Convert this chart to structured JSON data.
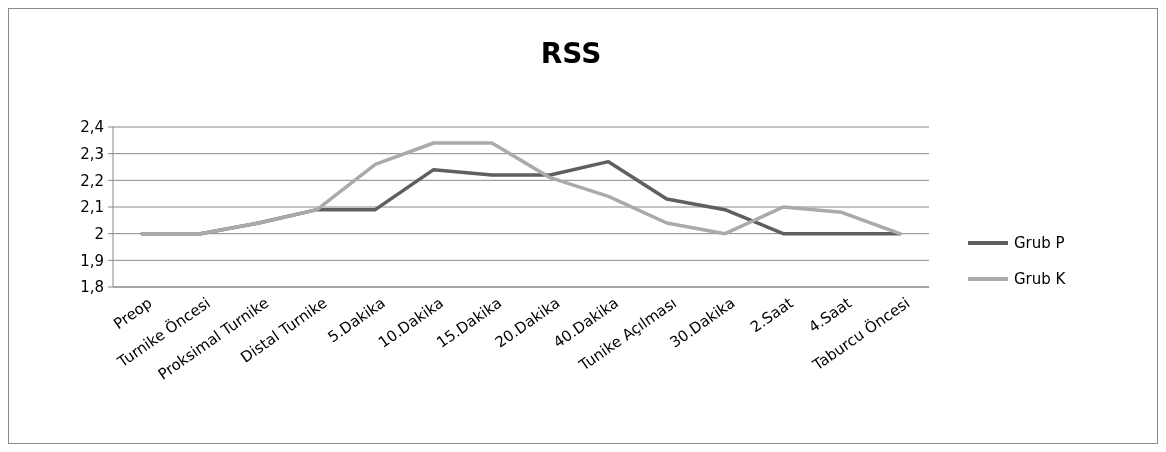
{
  "chart_data": {
    "type": "line",
    "title": "RSS",
    "categories": [
      "Preop",
      "Turnike Öncesi",
      "Proksimal Turnike",
      "Distal Turnike",
      "5.Dakika",
      "10.Dakika",
      "15.Dakika",
      "20.Dakika",
      "40.Dakika",
      "Tunike Açılması",
      "30.Dakika",
      "2.Saat",
      "4.Saat",
      "Taburcu Öncesi"
    ],
    "series": [
      {
        "name": "Grub P",
        "color": "#5f5f5f",
        "values": [
          2,
          2,
          2.04,
          2.09,
          2.09,
          2.24,
          2.22,
          2.22,
          2.27,
          2.13,
          2.09,
          2,
          2,
          2
        ]
      },
      {
        "name": "Grub K",
        "color": "#aaaaaa",
        "values": [
          2,
          2,
          2.04,
          2.09,
          2.26,
          2.34,
          2.34,
          2.21,
          2.14,
          2.04,
          2,
          2.1,
          2.08,
          2
        ]
      }
    ],
    "ylim": [
      1.8,
      2.4
    ],
    "yticks": [
      {
        "value": 1.8,
        "label": "1,8"
      },
      {
        "value": 1.9,
        "label": "1,9"
      },
      {
        "value": 2,
        "label": "2"
      },
      {
        "value": 2.1,
        "label": "2,1"
      },
      {
        "value": 2.2,
        "label": "2,2"
      },
      {
        "value": 2.3,
        "label": "2,3"
      },
      {
        "value": 2.4,
        "label": "2,4"
      }
    ],
    "grid": "y",
    "legend": "right",
    "marker": "none",
    "line_style": "solid"
  }
}
